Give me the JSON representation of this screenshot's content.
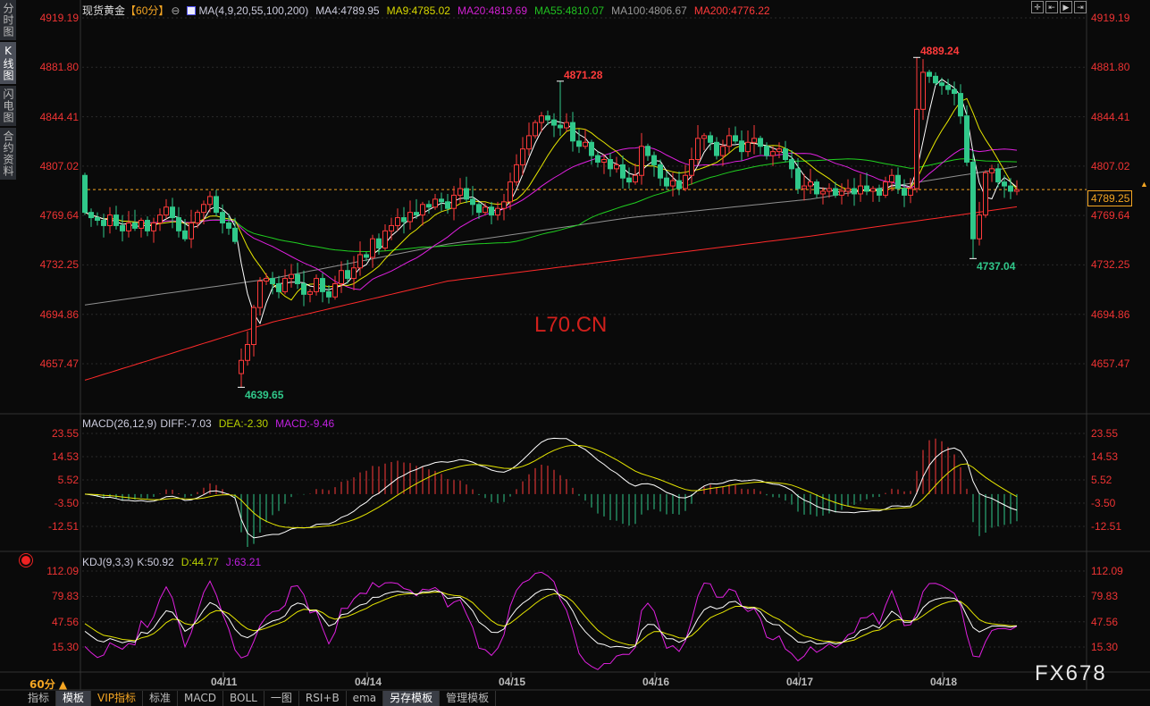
{
  "sidebar": {
    "tabs": [
      {
        "label": "分时图"
      },
      {
        "label": "K线图"
      },
      {
        "label": "闪电图"
      },
      {
        "label": "合约资料"
      }
    ],
    "active": 1
  },
  "header": {
    "instrument": "现货黄金",
    "period": "【60分】",
    "ma_label": "MA(4,9,20,55,100,200)",
    "ma4": "MA4:4789.95",
    "ma9": "MA9:4785.02",
    "ma20": "MA20:4819.69",
    "ma55": "MA55:4810.07",
    "ma100": "MA100:4806.67",
    "ma200": "MA200:4776.22"
  },
  "macd_header": {
    "label": "MACD(26,12,9)",
    "diff": "DIFF:-7.03",
    "dea": "DEA:-2.30",
    "macd": "MACD:-9.46"
  },
  "kdj_header": {
    "label": "KDJ(9,3,3)",
    "k": "K:50.92",
    "d": "D:44.77",
    "j": "J:63.21"
  },
  "last_price": "4789.25",
  "period_selector": "60分 ▲",
  "toolbar": [
    "指标",
    "模板",
    "VIP指标",
    "标准",
    "MACD",
    "BOLL",
    "一图",
    "RSI+B",
    "ema",
    "另存模板",
    "管理模板"
  ],
  "tool_icons": [
    "crosshair-icon",
    "zoom-left-icon",
    "play-icon",
    "move-right-icon"
  ],
  "watermarks": {
    "center": "L70.CN",
    "corner": "FX678"
  },
  "colors": {
    "up": "#ff3b3b",
    "down": "#30c88a",
    "ma4": "#ffffff",
    "ma9": "#e6e600",
    "ma20": "#e020e0",
    "ma55": "#20d020",
    "ma100": "#909090",
    "ma200": "#ff2a2a",
    "axis": "#e33333",
    "last": "#f5a623"
  },
  "chart_data": [
    {
      "type": "candlestick",
      "title": "现货黄金 60分",
      "x_labels": [
        "04/11",
        "04/14",
        "04/15",
        "04/16",
        "04/17",
        "04/18"
      ],
      "y_ticks": [
        4919.19,
        4881.8,
        4844.41,
        4807.02,
        4769.64,
        4732.25,
        4694.86,
        4657.47
      ],
      "ylim": [
        4640,
        4925
      ],
      "first_open": 4800,
      "close": [
        4772,
        4768,
        4766,
        4762,
        4770,
        4762,
        4758,
        4764,
        4760,
        4766,
        4758,
        4764,
        4770,
        4776,
        4768,
        4758,
        4752,
        4764,
        4772,
        4778,
        4784,
        4772,
        4764,
        4760,
        4750,
        4660,
        4672,
        4700,
        4720,
        4722,
        4718,
        4712,
        4722,
        4725,
        4718,
        4710,
        4712,
        4722,
        4712,
        4708,
        4718,
        4728,
        4722,
        4730,
        4740,
        4738,
        4752,
        4745,
        4758,
        4762,
        4768,
        4765,
        4772,
        4770,
        4778,
        4776,
        4782,
        4780,
        4775,
        4785,
        4790,
        4782,
        4778,
        4772,
        4776,
        4770,
        4775,
        4780,
        4795,
        4808,
        4820,
        4830,
        4840,
        4845,
        4842,
        4838,
        4836,
        4840,
        4826,
        4822,
        4825,
        4815,
        4810,
        4812,
        4805,
        4808,
        4798,
        4795,
        4800,
        4822,
        4815,
        4808,
        4798,
        4792,
        4796,
        4790,
        4800,
        4812,
        4828,
        4830,
        4825,
        4815,
        4822,
        4830,
        4826,
        4818,
        4825,
        4828,
        4822,
        4815,
        4818,
        4820,
        4812,
        4805,
        4790,
        4792,
        4795,
        4786,
        4788,
        4790,
        4785,
        4788,
        4790,
        4786,
        4792,
        4788,
        4790,
        4785,
        4795,
        4800,
        4790,
        4785,
        4790,
        4850,
        4878,
        4875,
        4870,
        4868,
        4865,
        4862,
        4845,
        4810,
        4752,
        4770,
        4802,
        4805,
        4795,
        4792,
        4788,
        4789.25
      ],
      "annotations": [
        {
          "text": "4871.28",
          "index": 76,
          "type": "high"
        },
        {
          "text": "4889.24",
          "index": 133,
          "type": "high"
        },
        {
          "text": "4639.65",
          "index": 25,
          "type": "low"
        },
        {
          "text": "4737.04",
          "index": 142,
          "type": "low"
        }
      ],
      "ma100_anchors": [
        [
          0,
          4702
        ],
        [
          30,
          4722
        ],
        [
          58,
          4748
        ],
        [
          87,
          4768
        ],
        [
          116,
          4782
        ],
        [
          149,
          4806.67
        ]
      ],
      "ma200_anchors": [
        [
          0,
          4645
        ],
        [
          30,
          4689
        ],
        [
          58,
          4720
        ],
        [
          87,
          4737
        ],
        [
          116,
          4754
        ],
        [
          149,
          4776.22
        ]
      ]
    },
    {
      "type": "macd",
      "y_ticks": [
        23.55,
        14.53,
        5.52,
        -3.5,
        -12.51
      ],
      "ylim": [
        -18,
        27
      ]
    },
    {
      "type": "kdj",
      "y_ticks": [
        112.09,
        79.83,
        47.56,
        15.3
      ],
      "ylim": [
        -5,
        125
      ]
    }
  ]
}
